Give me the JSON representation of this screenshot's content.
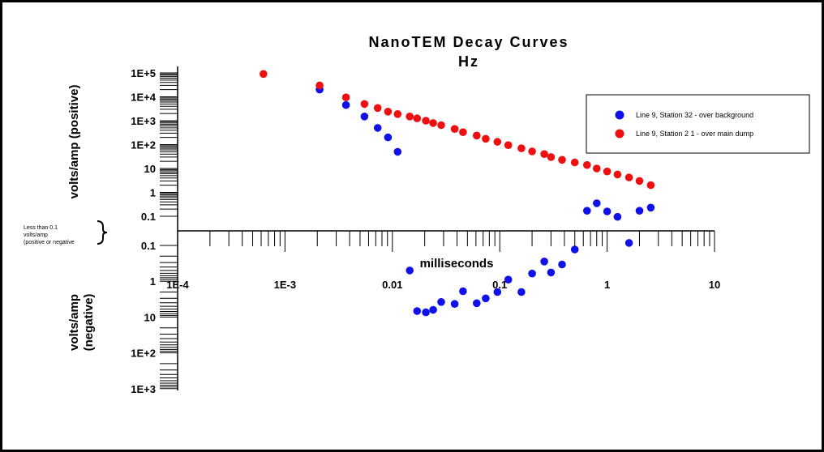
{
  "chart_data": {
    "type": "scatter",
    "title": "NanoTEM Decay Curves",
    "subtitle": "Hz",
    "xlabel": "milliseconds",
    "ylabel_positive": "volts/amp (positive)",
    "ylabel_negative_line1": "volts/amp",
    "ylabel_negative_line2": "(negative)",
    "x_scale": "log",
    "xlim": [
      0.0001,
      10
    ],
    "x_tick_labels": [
      "1E-4",
      "1E-3",
      "0.01",
      "0.1",
      "1",
      "10"
    ],
    "x_tick_values": [
      0.0001,
      0.001,
      0.01,
      0.1,
      1,
      10
    ],
    "y_scale": "log (split positive/negative)",
    "y_positive_tick_labels": [
      "1E+5",
      "1E+4",
      "1E+3",
      "1E+2",
      "10",
      "1",
      "0.1"
    ],
    "y_negative_tick_labels": [
      "0.1",
      "1",
      "10",
      "1E+2",
      "1E+3"
    ],
    "near_zero_note": "Less than 0.1 volts/amp (positive or negative",
    "legend_position": "top-right",
    "series": [
      {
        "name": "Line 9, Station 32 - over background",
        "color": "#1010e8",
        "points": [
          {
            "x": 0.0021,
            "y": 20000
          },
          {
            "x": 0.0037,
            "y": 4500
          },
          {
            "x": 0.0055,
            "y": 1500
          },
          {
            "x": 0.0073,
            "y": 500
          },
          {
            "x": 0.0091,
            "y": 200
          },
          {
            "x": 0.0112,
            "y": 50
          },
          {
            "x": 0.0145,
            "y": -0.5
          },
          {
            "x": 0.017,
            "y": -6.8
          },
          {
            "x": 0.0205,
            "y": -7.4
          },
          {
            "x": 0.024,
            "y": -6.3
          },
          {
            "x": 0.0285,
            "y": -3.8
          },
          {
            "x": 0.038,
            "y": -4.3
          },
          {
            "x": 0.0455,
            "y": -1.9
          },
          {
            "x": 0.061,
            "y": -4.1
          },
          {
            "x": 0.074,
            "y": -3.0
          },
          {
            "x": 0.095,
            "y": -2.0
          },
          {
            "x": 0.12,
            "y": -0.9
          },
          {
            "x": 0.159,
            "y": -2.0
          },
          {
            "x": 0.2,
            "y": -0.61
          },
          {
            "x": 0.26,
            "y": -0.28
          },
          {
            "x": 0.3,
            "y": -0.57
          },
          {
            "x": 0.38,
            "y": -0.34
          },
          {
            "x": 0.5,
            "y": -0.13
          },
          {
            "x": 0.65,
            "y": 0.17
          },
          {
            "x": 0.8,
            "y": 0.35
          },
          {
            "x": 1.0,
            "y": 0.16
          },
          {
            "x": 1.25,
            "y": 0.095
          },
          {
            "x": 1.6,
            "y": -0.085
          },
          {
            "x": 2.0,
            "y": 0.17
          },
          {
            "x": 2.55,
            "y": 0.23
          }
        ]
      },
      {
        "name": "Line 9, Station 2 1 - over main dump",
        "color": "#ee1010",
        "points": [
          {
            "x": 0.00063,
            "y": 90000
          },
          {
            "x": 0.0021,
            "y": 30000
          },
          {
            "x": 0.0037,
            "y": 9500
          },
          {
            "x": 0.0055,
            "y": 5000
          },
          {
            "x": 0.0073,
            "y": 3400
          },
          {
            "x": 0.0091,
            "y": 2400
          },
          {
            "x": 0.0112,
            "y": 1900
          },
          {
            "x": 0.0145,
            "y": 1500
          },
          {
            "x": 0.017,
            "y": 1250
          },
          {
            "x": 0.0205,
            "y": 1000
          },
          {
            "x": 0.024,
            "y": 800
          },
          {
            "x": 0.0285,
            "y": 650
          },
          {
            "x": 0.038,
            "y": 450
          },
          {
            "x": 0.0455,
            "y": 330
          },
          {
            "x": 0.061,
            "y": 240
          },
          {
            "x": 0.074,
            "y": 175
          },
          {
            "x": 0.095,
            "y": 130
          },
          {
            "x": 0.12,
            "y": 95
          },
          {
            "x": 0.159,
            "y": 70
          },
          {
            "x": 0.2,
            "y": 52
          },
          {
            "x": 0.26,
            "y": 40
          },
          {
            "x": 0.3,
            "y": 30
          },
          {
            "x": 0.38,
            "y": 23
          },
          {
            "x": 0.5,
            "y": 18
          },
          {
            "x": 0.65,
            "y": 14
          },
          {
            "x": 0.8,
            "y": 10
          },
          {
            "x": 1.0,
            "y": 7.5
          },
          {
            "x": 1.25,
            "y": 5.6
          },
          {
            "x": 1.6,
            "y": 4.2
          },
          {
            "x": 2.0,
            "y": 3.0
          },
          {
            "x": 2.55,
            "y": 2.0
          }
        ]
      }
    ]
  }
}
